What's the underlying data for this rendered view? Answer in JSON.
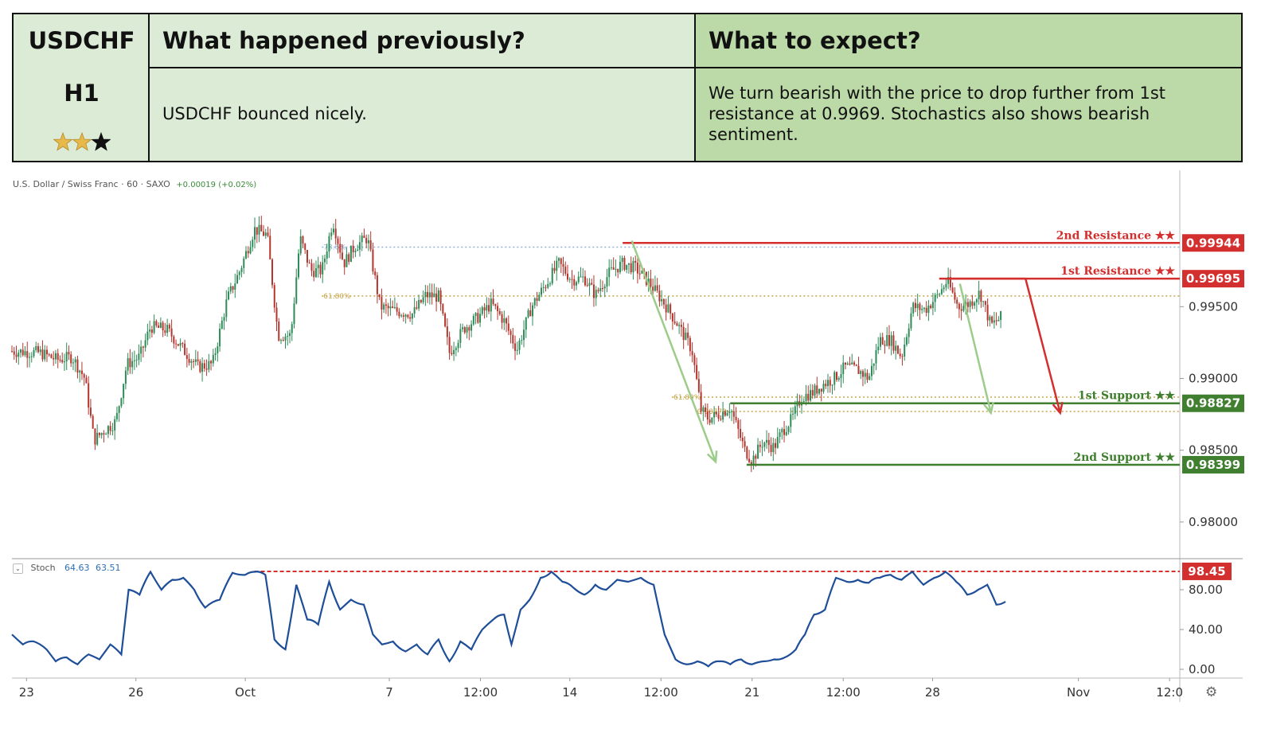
{
  "header": {
    "symbol": "USDCHF",
    "timeframe": "H1",
    "rating_stars": 2,
    "rating_max": 3,
    "previous_title": "What happened previously?",
    "previous_text": "USDCHF bounced nicely.",
    "expect_title": "What to expect?",
    "expect_text": "We turn bearish with the price to drop further from 1st resistance at 0.9969. Stochastics also shows bearish sentiment."
  },
  "colors": {
    "resistance": "#d32f2f",
    "support": "#3f7f2f",
    "stoch": "#1f4e99",
    "bull": "#2e8b57",
    "bear": "#b3362e",
    "fib": "#c8a64a"
  },
  "chart_data": {
    "type": "candlestick",
    "title": "U.S. Dollar / Swiss Franc · 60 · SAXO",
    "change_label": "+0.00019 (+0.02%)",
    "y_axis": {
      "range": [
        0.9775,
        1.0045
      ],
      "ticks": [
        0.98,
        0.985,
        0.99,
        0.995
      ],
      "tick_labels": [
        "0.98000",
        "0.98500",
        "0.99000",
        "0.99500"
      ]
    },
    "x_axis": {
      "ticks": [
        {
          "label": "23",
          "t": 0.8
        },
        {
          "label": "26",
          "t": 6.8
        },
        {
          "label": "Oct",
          "t": 12.8
        },
        {
          "label": "7",
          "t": 20.7
        },
        {
          "label": "12:00",
          "t": 25.7
        },
        {
          "label": "14",
          "t": 30.6
        },
        {
          "label": "12:00",
          "t": 35.6
        },
        {
          "label": "21",
          "t": 40.6
        },
        {
          "label": "12:00",
          "t": 45.6
        },
        {
          "label": "28",
          "t": 50.5
        },
        {
          "label": "Nov",
          "t": 58.5
        },
        {
          "label": "12:0",
          "t": 63.5
        }
      ]
    },
    "price_path": [
      [
        0,
        0.9919
      ],
      [
        1.5,
        0.9918
      ],
      [
        2.5,
        0.9913
      ],
      [
        3.3,
        0.9915
      ],
      [
        4.0,
        0.99
      ],
      [
        4.5,
        0.9857
      ],
      [
        5.0,
        0.9863
      ],
      [
        5.7,
        0.987
      ],
      [
        6.3,
        0.991
      ],
      [
        7.0,
        0.9915
      ],
      [
        7.6,
        0.9936
      ],
      [
        8.5,
        0.9934
      ],
      [
        9.4,
        0.992
      ],
      [
        10.2,
        0.9908
      ],
      [
        11.0,
        0.991
      ],
      [
        11.8,
        0.9955
      ],
      [
        12.5,
        0.9975
      ],
      [
        13.3,
        1.0004
      ],
      [
        14.0,
        1.0
      ],
      [
        14.6,
        0.993
      ],
      [
        15.3,
        0.993
      ],
      [
        15.8,
        0.9998
      ],
      [
        16.4,
        0.9975
      ],
      [
        17.0,
        0.9975
      ],
      [
        17.6,
        1.001
      ],
      [
        18.2,
        0.998
      ],
      [
        18.8,
        0.9992
      ],
      [
        19.5,
        0.9998
      ],
      [
        20.2,
        0.995
      ],
      [
        21.0,
        0.9947
      ],
      [
        22.0,
        0.9945
      ],
      [
        22.7,
        0.9958
      ],
      [
        23.4,
        0.9957
      ],
      [
        24.0,
        0.9918
      ],
      [
        24.8,
        0.9935
      ],
      [
        25.5,
        0.9942
      ],
      [
        26.3,
        0.9952
      ],
      [
        27.0,
        0.994
      ],
      [
        27.7,
        0.992
      ],
      [
        28.5,
        0.995
      ],
      [
        29.3,
        0.9966
      ],
      [
        30.0,
        0.998
      ],
      [
        30.7,
        0.9969
      ],
      [
        31.4,
        0.997
      ],
      [
        32.0,
        0.9958
      ],
      [
        32.8,
        0.9974
      ],
      [
        33.5,
        0.998
      ],
      [
        34.2,
        0.9977
      ],
      [
        35.0,
        0.9966
      ],
      [
        35.8,
        0.9952
      ],
      [
        36.5,
        0.9938
      ],
      [
        37.3,
        0.992
      ],
      [
        37.8,
        0.9878
      ],
      [
        38.2,
        0.9872
      ],
      [
        38.8,
        0.9875
      ],
      [
        39.4,
        0.988
      ],
      [
        39.8,
        0.9865
      ],
      [
        40.2,
        0.985
      ],
      [
        40.6,
        0.9843
      ],
      [
        41.2,
        0.9856
      ],
      [
        41.8,
        0.9852
      ],
      [
        42.3,
        0.9864
      ],
      [
        42.8,
        0.9872
      ],
      [
        43.3,
        0.9887
      ],
      [
        43.9,
        0.989
      ],
      [
        44.5,
        0.9896
      ],
      [
        45.1,
        0.99
      ],
      [
        45.7,
        0.9908
      ],
      [
        46.4,
        0.9906
      ],
      [
        47.0,
        0.99
      ],
      [
        47.6,
        0.9927
      ],
      [
        48.2,
        0.9927
      ],
      [
        48.8,
        0.9915
      ],
      [
        49.4,
        0.995
      ],
      [
        50.1,
        0.9948
      ],
      [
        50.8,
        0.9958
      ],
      [
        51.3,
        0.9968
      ],
      [
        51.9,
        0.995
      ],
      [
        52.5,
        0.9952
      ],
      [
        53.1,
        0.996
      ],
      [
        53.7,
        0.9937
      ],
      [
        54.3,
        0.9943
      ]
    ],
    "levels": [
      {
        "name": "2nd Resistance ★★",
        "value": 0.99944,
        "label": "0.99944",
        "kind": "resistance",
        "t_start": 33.5
      },
      {
        "name": "1st Resistance ★★",
        "value": 0.99695,
        "label": "0.99695",
        "kind": "resistance",
        "t_start": 51.3
      },
      {
        "name": "1st Support ★★",
        "value": 0.98827,
        "label": "0.98827",
        "kind": "support",
        "t_start": 39.4
      },
      {
        "name": "2nd Support ★★",
        "value": 0.98399,
        "label": "0.98399",
        "kind": "support",
        "t_start": 40.3
      }
    ],
    "fib_lines": [
      {
        "label": "78.6%",
        "value": 0.99915,
        "t_start": 17.0,
        "color": "#8fb3d9"
      },
      {
        "label": "61.80%",
        "value": 0.99575,
        "t_start": 17.0,
        "color": "#c8a64a"
      },
      {
        "label": "61.80%",
        "value": 0.9887,
        "t_start": 36.2,
        "color": "#c8a64a"
      },
      {
        "label": "0.98770",
        "value": 0.9877,
        "t_start": 37.5,
        "color": "#c8a64a"
      }
    ],
    "arrows": [
      {
        "from": [
          34.0,
          0.9996
        ],
        "to": [
          38.6,
          0.9842
        ],
        "color": "#9ccc8a"
      },
      {
        "from": [
          52.0,
          0.9966
        ],
        "to": [
          53.7,
          0.9876
        ],
        "color": "#9ccc8a"
      },
      {
        "from": [
          55.6,
          0.99695
        ],
        "to": [
          57.5,
          0.9876
        ],
        "color": "#d32f2f"
      }
    ],
    "stochastic": {
      "name": "Stoch",
      "k": "64.63",
      "d": "63.51",
      "range": [
        0,
        100
      ],
      "ticks": [
        0,
        40,
        80
      ],
      "tick_labels": [
        "0.00",
        "40.00",
        "80.00"
      ],
      "marker_value": 98.45,
      "marker_label": "98.45",
      "marker_t_start": 13.3,
      "series": [
        [
          0,
          35
        ],
        [
          0.6,
          25
        ],
        [
          1.2,
          28
        ],
        [
          1.9,
          20
        ],
        [
          2.4,
          8
        ],
        [
          3.0,
          12
        ],
        [
          3.6,
          5
        ],
        [
          4.2,
          15
        ],
        [
          4.8,
          10
        ],
        [
          5.4,
          25
        ],
        [
          6.0,
          15
        ],
        [
          6.4,
          80
        ],
        [
          7.0,
          75
        ],
        [
          7.6,
          98
        ],
        [
          8.2,
          80
        ],
        [
          8.8,
          90
        ],
        [
          9.4,
          92
        ],
        [
          10.0,
          80
        ],
        [
          10.6,
          62
        ],
        [
          11.4,
          70
        ],
        [
          12.1,
          97
        ],
        [
          12.8,
          95
        ],
        [
          13.3,
          98
        ],
        [
          13.9,
          95
        ],
        [
          14.4,
          30
        ],
        [
          15.0,
          20
        ],
        [
          15.6,
          85
        ],
        [
          16.2,
          50
        ],
        [
          16.8,
          45
        ],
        [
          17.4,
          88
        ],
        [
          18.0,
          60
        ],
        [
          18.6,
          70
        ],
        [
          19.3,
          65
        ],
        [
          19.8,
          35
        ],
        [
          20.3,
          25
        ],
        [
          20.9,
          28
        ],
        [
          21.6,
          18
        ],
        [
          22.2,
          25
        ],
        [
          22.8,
          15
        ],
        [
          23.4,
          30
        ],
        [
          24.0,
          8
        ],
        [
          24.6,
          28
        ],
        [
          25.2,
          20
        ],
        [
          25.8,
          40
        ],
        [
          26.4,
          50
        ],
        [
          27.0,
          55
        ],
        [
          27.4,
          25
        ],
        [
          27.9,
          60
        ],
        [
          28.4,
          70
        ],
        [
          29.0,
          92
        ],
        [
          29.6,
          98
        ],
        [
          30.2,
          88
        ],
        [
          30.8,
          82
        ],
        [
          31.4,
          75
        ],
        [
          32.0,
          85
        ],
        [
          32.6,
          80
        ],
        [
          33.2,
          90
        ],
        [
          33.8,
          88
        ],
        [
          34.5,
          92
        ],
        [
          35.2,
          85
        ],
        [
          35.8,
          35
        ],
        [
          36.4,
          10
        ],
        [
          37.0,
          5
        ],
        [
          37.6,
          8
        ],
        [
          38.2,
          3
        ],
        [
          38.8,
          8
        ],
        [
          39.4,
          5
        ],
        [
          40.0,
          10
        ],
        [
          40.6,
          5
        ],
        [
          41.2,
          8
        ],
        [
          41.8,
          10
        ],
        [
          42.4,
          12
        ],
        [
          43.0,
          20
        ],
        [
          43.5,
          35
        ],
        [
          44.0,
          55
        ],
        [
          44.6,
          60
        ],
        [
          45.2,
          92
        ],
        [
          45.8,
          88
        ],
        [
          46.4,
          90
        ],
        [
          47.0,
          87
        ],
        [
          47.6,
          92
        ],
        [
          48.2,
          95
        ],
        [
          48.8,
          90
        ],
        [
          49.4,
          98
        ],
        [
          50.0,
          85
        ],
        [
          50.6,
          92
        ],
        [
          51.2,
          98
        ],
        [
          51.8,
          88
        ],
        [
          52.4,
          75
        ],
        [
          53.0,
          80
        ],
        [
          53.5,
          85
        ],
        [
          54.0,
          65
        ],
        [
          54.5,
          68
        ]
      ]
    }
  },
  "ui": {
    "settings_icon": "gear-icon",
    "collapse_icon": "chevron-down-icon"
  }
}
